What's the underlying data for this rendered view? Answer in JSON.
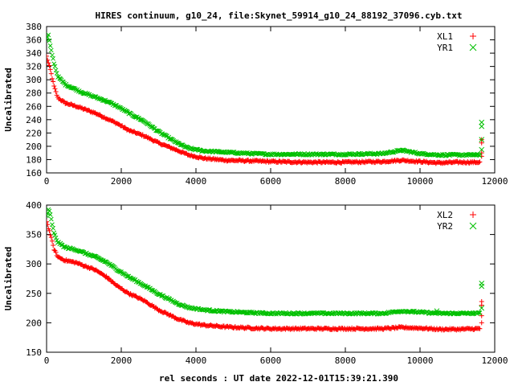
{
  "chart_data": [
    {
      "type": "scatter",
      "title": "HIRES continuum, g10_24, file:Skynet_59914_g10_24_88192_37096.cyb.txt",
      "xlabel": "",
      "ylabel": "Uncalibrated",
      "xlim": [
        0,
        12000
      ],
      "ylim": [
        160,
        380
      ],
      "xticks": [
        0,
        2000,
        4000,
        6000,
        8000,
        10000,
        12000
      ],
      "yticks": [
        160,
        180,
        200,
        220,
        240,
        260,
        280,
        300,
        320,
        340,
        360,
        380
      ],
      "grid": false,
      "legend_position": "top-right",
      "series": [
        {
          "name": "XL1",
          "marker": "+",
          "color": "#ff0000",
          "points": [
            [
              0,
              335
            ],
            [
              100,
              315
            ],
            [
              200,
              290
            ],
            [
              300,
              273
            ],
            [
              500,
              265
            ],
            [
              800,
              260
            ],
            [
              1000,
              256
            ],
            [
              1300,
              250
            ],
            [
              1600,
              242
            ],
            [
              1900,
              234
            ],
            [
              2200,
              224
            ],
            [
              2600,
              216
            ],
            [
              3000,
              205
            ],
            [
              3500,
              194
            ],
            [
              3800,
              187
            ],
            [
              4200,
              182
            ],
            [
              4800,
              179
            ],
            [
              5500,
              178
            ],
            [
              6000,
              177
            ],
            [
              7000,
              176
            ],
            [
              8000,
              176
            ],
            [
              9000,
              177
            ],
            [
              9500,
              179
            ],
            [
              10000,
              177
            ],
            [
              10500,
              175
            ],
            [
              11000,
              176
            ],
            [
              11600,
              176
            ]
          ],
          "outliers": [
            [
              11650,
              210
            ],
            [
              11650,
              205
            ],
            [
              11650,
              190
            ],
            [
              11650,
              185
            ]
          ]
        },
        {
          "name": "YR1",
          "marker": "x",
          "color": "#00c000",
          "points": [
            [
              0,
              360
            ],
            [
              50,
              367
            ],
            [
              100,
              350
            ],
            [
              200,
              325
            ],
            [
              300,
              305
            ],
            [
              500,
              293
            ],
            [
              800,
              285
            ],
            [
              1000,
              280
            ],
            [
              1300,
              274
            ],
            [
              1600,
              268
            ],
            [
              1900,
              260
            ],
            [
              2200,
              250
            ],
            [
              2600,
              238
            ],
            [
              3000,
              222
            ],
            [
              3500,
              205
            ],
            [
              3800,
              197
            ],
            [
              4200,
              193
            ],
            [
              4800,
              191
            ],
            [
              5500,
              189
            ],
            [
              6000,
              188
            ],
            [
              7000,
              188
            ],
            [
              8000,
              188
            ],
            [
              9000,
              189
            ],
            [
              9500,
              194
            ],
            [
              10000,
              189
            ],
            [
              10500,
              187
            ],
            [
              11000,
              187
            ],
            [
              11600,
              187
            ]
          ],
          "outliers": [
            [
              11650,
              236
            ],
            [
              11650,
              230
            ],
            [
              11650,
              210
            ],
            [
              11650,
              195
            ]
          ]
        }
      ]
    },
    {
      "type": "scatter",
      "title": "",
      "xlabel": "rel seconds : UT date 2022-12-01T15:39:21.390",
      "ylabel": "Uncalibrated",
      "xlim": [
        0,
        12000
      ],
      "ylim": [
        150,
        400
      ],
      "xticks": [
        0,
        2000,
        4000,
        6000,
        8000,
        10000,
        12000
      ],
      "yticks": [
        150,
        200,
        250,
        300,
        350,
        400
      ],
      "grid": false,
      "legend_position": "top-right",
      "series": [
        {
          "name": "XL2",
          "marker": "+",
          "color": "#ff0000",
          "points": [
            [
              0,
              372
            ],
            [
              100,
              350
            ],
            [
              200,
              325
            ],
            [
              300,
              312
            ],
            [
              500,
              306
            ],
            [
              800,
              302
            ],
            [
              1000,
              297
            ],
            [
              1300,
              290
            ],
            [
              1600,
              278
            ],
            [
              1900,
              262
            ],
            [
              2200,
              250
            ],
            [
              2600,
              238
            ],
            [
              3000,
              222
            ],
            [
              3500,
              207
            ],
            [
              3800,
              200
            ],
            [
              4200,
              196
            ],
            [
              4800,
              193
            ],
            [
              5500,
              191
            ],
            [
              6000,
              190
            ],
            [
              7000,
              190
            ],
            [
              8000,
              190
            ],
            [
              9000,
              190
            ],
            [
              9500,
              192
            ],
            [
              10000,
              191
            ],
            [
              10500,
              189
            ],
            [
              11000,
              189
            ],
            [
              11600,
              190
            ]
          ],
          "outliers": [
            [
              11650,
              236
            ],
            [
              11650,
              230
            ],
            [
              11650,
              212
            ],
            [
              11650,
              200
            ]
          ]
        },
        {
          "name": "YR2",
          "marker": "x",
          "color": "#00c000",
          "points": [
            [
              0,
              382
            ],
            [
              60,
              393
            ],
            [
              100,
              383
            ],
            [
              200,
              352
            ],
            [
              300,
              337
            ],
            [
              500,
              328
            ],
            [
              800,
              324
            ],
            [
              1000,
              319
            ],
            [
              1300,
              312
            ],
            [
              1600,
              303
            ],
            [
              1900,
              290
            ],
            [
              2200,
              278
            ],
            [
              2600,
              264
            ],
            [
              3000,
              249
            ],
            [
              3500,
              233
            ],
            [
              3800,
              226
            ],
            [
              4200,
              222
            ],
            [
              4800,
              219
            ],
            [
              5500,
              217
            ],
            [
              6000,
              216
            ],
            [
              7000,
              216
            ],
            [
              8000,
              216
            ],
            [
              9000,
              216
            ],
            [
              9500,
              220
            ],
            [
              10000,
              218
            ],
            [
              10500,
              216
            ],
            [
              11000,
              216
            ],
            [
              11600,
              216
            ]
          ],
          "outliers": [
            [
              11650,
              267
            ],
            [
              11650,
              262
            ],
            [
              11650,
              225
            ],
            [
              10450,
              220
            ]
          ]
        }
      ]
    }
  ]
}
